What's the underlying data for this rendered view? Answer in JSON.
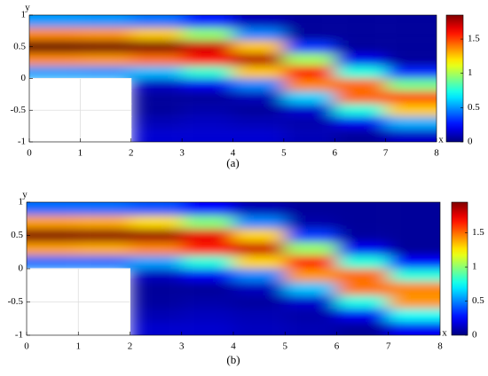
{
  "chart_data": [
    {
      "type": "heatmap",
      "caption": "(a)",
      "x_label": "x",
      "y_label": "y",
      "xlim": [
        0,
        8
      ],
      "ylim": [
        -1,
        1
      ],
      "xticks": [
        0,
        1,
        2,
        3,
        4,
        5,
        6,
        7,
        8
      ],
      "yticks": [
        -1,
        -0.5,
        0,
        0.5,
        1
      ],
      "x": [
        0.5,
        1.5,
        2.5,
        3.5,
        4.5,
        5.5,
        6.5,
        7.5
      ],
      "y": [
        0.9,
        0.7,
        0.5,
        0.3,
        0.1,
        -0.1,
        -0.3,
        -0.5,
        -0.7,
        -0.9
      ],
      "z": [
        [
          0.51,
          0.5,
          0.44,
          0.28,
          0.1,
          0.05,
          0.05,
          0.05
        ],
        [
          1.37,
          1.35,
          1.25,
          0.95,
          0.47,
          0.05,
          0.05,
          0.05
        ],
        [
          1.9,
          1.88,
          1.85,
          1.71,
          1.26,
          0.32,
          0.05,
          0.05
        ],
        [
          1.37,
          1.35,
          1.42,
          1.6,
          1.75,
          0.99,
          0.2,
          0.05
        ],
        [
          0.51,
          0.5,
          0.57,
          0.78,
          1.26,
          1.62,
          0.75,
          0.29
        ],
        [
          null,
          null,
          0.12,
          0.2,
          0.47,
          1.38,
          1.43,
          0.9
        ],
        [
          null,
          null,
          0.05,
          0.05,
          0.1,
          0.61,
          1.43,
          1.47
        ],
        [
          null,
          null,
          0.05,
          0.08,
          0.05,
          0.14,
          0.75,
          1.25
        ],
        [
          null,
          null,
          0.1,
          0.12,
          0.1,
          0.08,
          0.2,
          0.55
        ],
        [
          null,
          null,
          0.15,
          0.15,
          0.15,
          0.1,
          0.05,
          0.13
        ]
      ],
      "colormap": "jet",
      "clim": [
        0,
        1.85
      ],
      "cbar_ticks": [
        0,
        0.5,
        1,
        1.5
      ]
    },
    {
      "type": "heatmap",
      "caption": "(b)",
      "x_label": "x",
      "y_label": "y",
      "xlim": [
        0,
        8
      ],
      "ylim": [
        -1,
        1
      ],
      "xticks": [
        0,
        1,
        2,
        3,
        4,
        5,
        6,
        7,
        8
      ],
      "yticks": [
        -1,
        -0.5,
        0,
        0.5,
        1
      ],
      "x": [
        0.5,
        1.5,
        2.5,
        3.5,
        4.5,
        5.5,
        6.5,
        7.5
      ],
      "y": [
        0.9,
        0.7,
        0.5,
        0.3,
        0.1,
        -0.1,
        -0.3,
        -0.5,
        -0.7,
        -0.9
      ],
      "z": [
        [
          0.45,
          0.45,
          0.4,
          0.25,
          0.1,
          0.05,
          0.05,
          0.05
        ],
        [
          1.4,
          1.38,
          1.28,
          0.98,
          0.5,
          0.08,
          0.05,
          0.05
        ],
        [
          1.95,
          1.93,
          1.9,
          1.75,
          1.3,
          0.35,
          0.06,
          0.05
        ],
        [
          1.4,
          1.38,
          1.45,
          1.65,
          1.8,
          1.02,
          0.22,
          0.05
        ],
        [
          0.45,
          0.45,
          0.55,
          0.8,
          1.3,
          1.66,
          0.8,
          0.25
        ],
        [
          null,
          null,
          0.12,
          0.22,
          0.5,
          1.42,
          1.5,
          0.8
        ],
        [
          null,
          null,
          0.05,
          0.05,
          0.12,
          0.62,
          1.48,
          1.45
        ],
        [
          null,
          null,
          0.06,
          0.08,
          0.06,
          0.15,
          0.78,
          1.42
        ],
        [
          null,
          null,
          0.1,
          0.12,
          0.1,
          0.08,
          0.22,
          0.75
        ],
        [
          null,
          null,
          0.15,
          0.15,
          0.12,
          0.1,
          0.05,
          0.22
        ]
      ],
      "colormap": "jet",
      "clim": [
        0,
        1.95
      ],
      "cbar_ticks": [
        0,
        0.5,
        1,
        1.5
      ]
    }
  ]
}
